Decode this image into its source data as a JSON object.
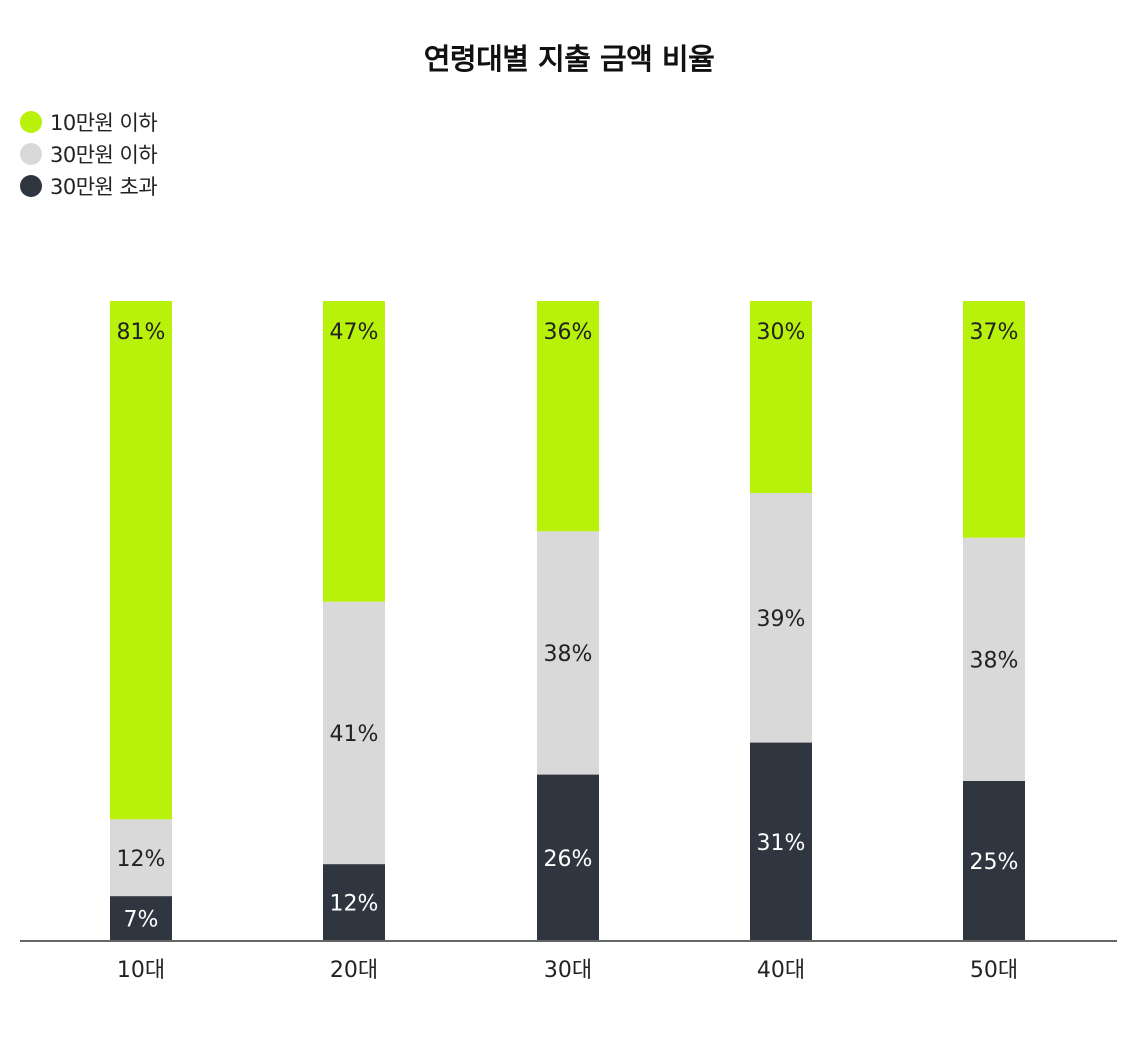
{
  "chart_data": {
    "type": "bar",
    "stacked": true,
    "title": "연령대별 지출 금액 비율",
    "categories": [
      "10대",
      "20대",
      "30대",
      "40대",
      "50대"
    ],
    "series": [
      {
        "name": "10만원 이하",
        "color": "#b8f20a",
        "values": [
          81,
          47,
          36,
          30,
          37
        ]
      },
      {
        "name": "30만원 이하",
        "color": "#d9d9d9",
        "values": [
          12,
          41,
          38,
          39,
          38
        ]
      },
      {
        "name": "30만원 초과",
        "color": "#2f3640",
        "values": [
          7,
          12,
          26,
          31,
          25
        ]
      }
    ],
    "value_suffix": "%",
    "ylim": [
      0,
      100
    ],
    "legend_position": "top-left",
    "grid": false
  }
}
